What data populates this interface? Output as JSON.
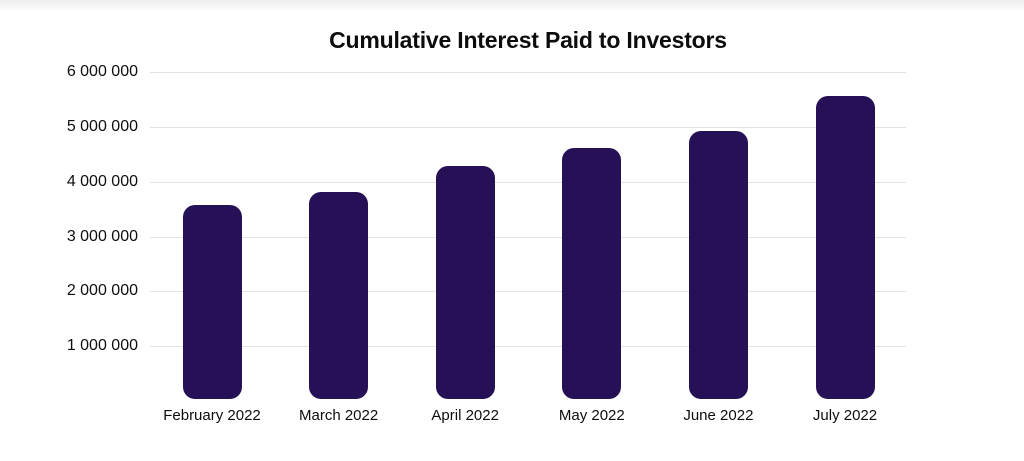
{
  "chart_data": {
    "type": "bar",
    "title": "Cumulative Interest Paid to Investors",
    "categories": [
      "February 2022",
      "March 2022",
      "April 2022",
      "May 2022",
      "June 2022",
      "July 2022"
    ],
    "values": [
      3570000,
      3810000,
      4280000,
      4620000,
      4930000,
      5560000
    ],
    "xlabel": "",
    "ylabel": "",
    "ylim": [
      0,
      6000000
    ],
    "yticks": [
      1000000,
      2000000,
      3000000,
      4000000,
      5000000,
      6000000
    ],
    "ytick_labels": [
      "1 000 000",
      "2 000 000",
      "3 000 000",
      "4 000 000",
      "5 000 000",
      "6 000 000"
    ],
    "grid": "horizontal",
    "legend": "none",
    "bar_color": "#261156",
    "gridline_color": "#e2e2e2",
    "text_color": "#0e0e0e"
  }
}
